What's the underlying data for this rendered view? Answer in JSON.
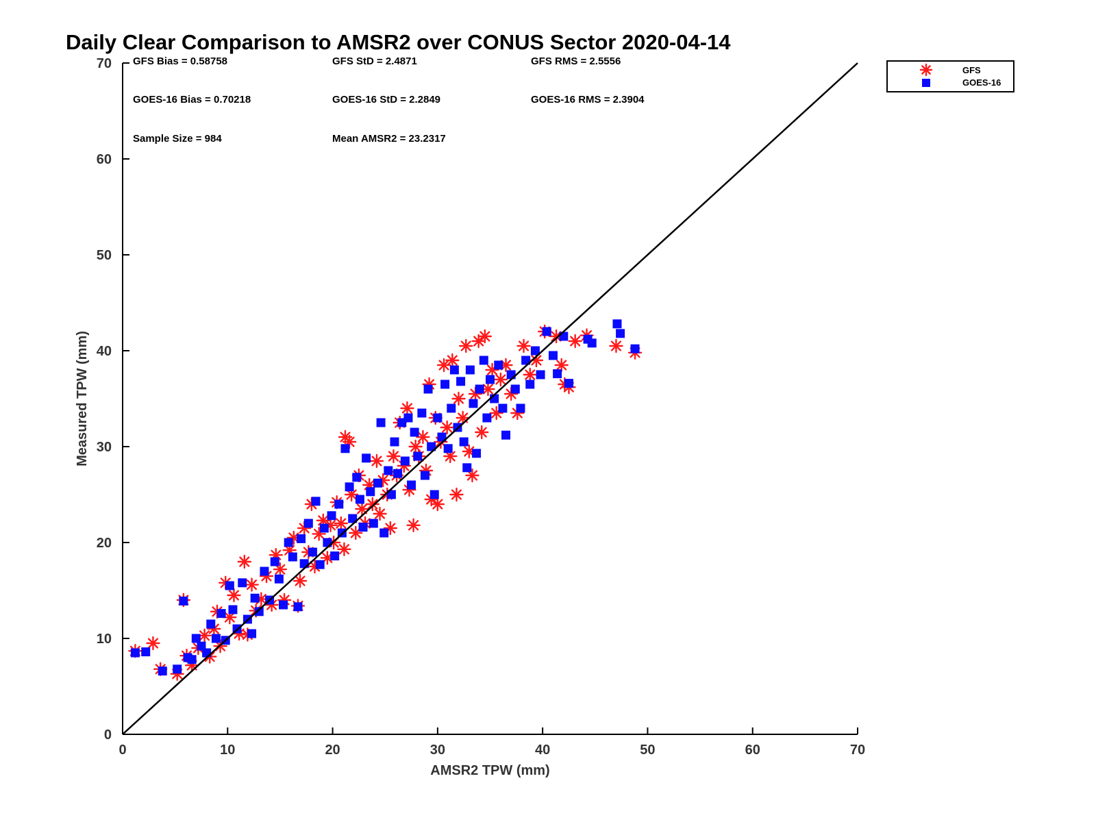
{
  "chart_data": {
    "type": "scatter",
    "title": "Daily Clear Comparison to AMSR2 over CONUS Sector 2020-04-14",
    "xlabel": "AMSR2 TPW (mm)",
    "ylabel": "Measured TPW (mm)",
    "xlim": [
      0,
      70
    ],
    "ylim": [
      0,
      70
    ],
    "xticks": [
      "0",
      "10",
      "20",
      "30",
      "40",
      "50",
      "60",
      "70"
    ],
    "yticks": [
      "0",
      "10",
      "20",
      "30",
      "40",
      "50",
      "60",
      "70"
    ],
    "grid": false,
    "legend_position": "outside-top-right",
    "reference_line": {
      "from": [
        0,
        0
      ],
      "to": [
        70,
        70
      ],
      "color": "#000000"
    },
    "stats": [
      "GFS Bias = 0.58758",
      "GFS StD = 2.4871",
      "GFS RMS = 2.5556",
      "GOES-16 Bias = 0.70218",
      "GOES-16 StD = 2.2849",
      "GOES-16 RMS = 2.3904",
      "Sample Size = 984",
      "Mean AMSR2 = 23.2317"
    ],
    "series": [
      {
        "name": "GFS",
        "marker": "asterisk",
        "color": "#ff1a1a",
        "points": [
          [
            1.2,
            8.7
          ],
          [
            2.9,
            9.5
          ],
          [
            3.6,
            6.8
          ],
          [
            5.8,
            14.0
          ],
          [
            5.2,
            6.3
          ],
          [
            6.1,
            8.2
          ],
          [
            6.6,
            7.2
          ],
          [
            7.2,
            9.0
          ],
          [
            7.8,
            10.3
          ],
          [
            8.3,
            8.1
          ],
          [
            8.7,
            11.0
          ],
          [
            9.0,
            12.8
          ],
          [
            9.3,
            9.2
          ],
          [
            9.8,
            15.8
          ],
          [
            10.2,
            12.2
          ],
          [
            10.6,
            14.5
          ],
          [
            11.1,
            10.5
          ],
          [
            11.6,
            18.0
          ],
          [
            11.9,
            10.4
          ],
          [
            12.3,
            15.6
          ],
          [
            12.7,
            12.9
          ],
          [
            13.2,
            14.1
          ],
          [
            13.7,
            16.5
          ],
          [
            14.2,
            13.5
          ],
          [
            14.6,
            18.7
          ],
          [
            15.0,
            17.2
          ],
          [
            15.4,
            14.0
          ],
          [
            15.9,
            19.2
          ],
          [
            16.3,
            20.5
          ],
          [
            16.7,
            13.4
          ],
          [
            16.9,
            16.0
          ],
          [
            17.3,
            21.5
          ],
          [
            17.7,
            19.0
          ],
          [
            18.0,
            24.0
          ],
          [
            18.3,
            17.5
          ],
          [
            18.7,
            20.9
          ],
          [
            19.1,
            22.3
          ],
          [
            19.5,
            18.4
          ],
          [
            19.8,
            21.8
          ],
          [
            20.1,
            20.0
          ],
          [
            20.4,
            24.2
          ],
          [
            20.8,
            22.0
          ],
          [
            21.1,
            19.3
          ],
          [
            21.2,
            31.0
          ],
          [
            21.6,
            30.5
          ],
          [
            21.8,
            25.0
          ],
          [
            22.2,
            21.0
          ],
          [
            22.5,
            27.0
          ],
          [
            22.8,
            23.5
          ],
          [
            23.1,
            22.0
          ],
          [
            23.5,
            26.0
          ],
          [
            23.8,
            24.0
          ],
          [
            24.2,
            28.5
          ],
          [
            24.5,
            23.0
          ],
          [
            24.8,
            26.5
          ],
          [
            25.2,
            25.0
          ],
          [
            25.5,
            21.5
          ],
          [
            25.8,
            29.0
          ],
          [
            26.1,
            27.0
          ],
          [
            26.4,
            32.5
          ],
          [
            26.8,
            28.0
          ],
          [
            27.1,
            34.0
          ],
          [
            27.3,
            25.5
          ],
          [
            27.7,
            21.8
          ],
          [
            27.9,
            30.0
          ],
          [
            28.2,
            29.0
          ],
          [
            28.6,
            31.0
          ],
          [
            28.9,
            27.5
          ],
          [
            29.2,
            36.5
          ],
          [
            29.4,
            24.5
          ],
          [
            29.8,
            33.0
          ],
          [
            30.0,
            24.0
          ],
          [
            30.3,
            30.5
          ],
          [
            30.6,
            38.5
          ],
          [
            30.9,
            32.0
          ],
          [
            31.2,
            29.0
          ],
          [
            31.4,
            39.0
          ],
          [
            31.8,
            25.0
          ],
          [
            32.0,
            35.0
          ],
          [
            32.4,
            33.0
          ],
          [
            32.7,
            40.5
          ],
          [
            33.0,
            29.5
          ],
          [
            33.3,
            27.0
          ],
          [
            33.6,
            35.5
          ],
          [
            33.9,
            41.0
          ],
          [
            34.2,
            31.5
          ],
          [
            34.5,
            41.5
          ],
          [
            34.8,
            36.0
          ],
          [
            35.2,
            38.0
          ],
          [
            35.6,
            33.5
          ],
          [
            36.0,
            37.0
          ],
          [
            36.5,
            38.5
          ],
          [
            37.0,
            35.5
          ],
          [
            37.6,
            33.5
          ],
          [
            38.2,
            40.5
          ],
          [
            38.8,
            37.5
          ],
          [
            39.4,
            39.0
          ],
          [
            40.2,
            42.0
          ],
          [
            41.3,
            41.5
          ],
          [
            41.8,
            38.5
          ],
          [
            42.1,
            36.5
          ],
          [
            42.5,
            36.2
          ],
          [
            43.1,
            41.0
          ],
          [
            44.2,
            41.6
          ],
          [
            47.0,
            40.5
          ],
          [
            48.8,
            39.8
          ]
        ]
      },
      {
        "name": "GOES-16",
        "marker": "square",
        "color": "#0a0aff",
        "points": [
          [
            1.2,
            8.5
          ],
          [
            2.2,
            8.6
          ],
          [
            3.8,
            6.6
          ],
          [
            5.8,
            13.9
          ],
          [
            5.2,
            6.8
          ],
          [
            6.2,
            8.0
          ],
          [
            6.6,
            7.8
          ],
          [
            7.0,
            10.0
          ],
          [
            7.5,
            9.2
          ],
          [
            8.0,
            8.5
          ],
          [
            8.4,
            11.5
          ],
          [
            8.9,
            10.0
          ],
          [
            9.4,
            12.6
          ],
          [
            9.8,
            9.8
          ],
          [
            10.2,
            15.5
          ],
          [
            10.5,
            13.0
          ],
          [
            10.9,
            11.0
          ],
          [
            11.4,
            15.8
          ],
          [
            11.9,
            12.0
          ],
          [
            12.3,
            10.5
          ],
          [
            12.6,
            14.2
          ],
          [
            13.0,
            12.8
          ],
          [
            13.5,
            17.0
          ],
          [
            14.0,
            14.0
          ],
          [
            14.5,
            18.0
          ],
          [
            14.9,
            16.2
          ],
          [
            15.3,
            13.5
          ],
          [
            15.8,
            20.0
          ],
          [
            16.2,
            18.5
          ],
          [
            16.7,
            13.3
          ],
          [
            17.0,
            20.4
          ],
          [
            17.3,
            17.8
          ],
          [
            17.7,
            22.0
          ],
          [
            18.1,
            19.0
          ],
          [
            18.4,
            24.3
          ],
          [
            18.8,
            17.7
          ],
          [
            19.2,
            21.5
          ],
          [
            19.5,
            20.0
          ],
          [
            19.9,
            22.8
          ],
          [
            20.2,
            18.6
          ],
          [
            20.6,
            24.0
          ],
          [
            20.9,
            21.0
          ],
          [
            21.2,
            29.8
          ],
          [
            21.6,
            25.8
          ],
          [
            21.9,
            22.5
          ],
          [
            22.3,
            26.8
          ],
          [
            22.6,
            24.5
          ],
          [
            22.9,
            21.6
          ],
          [
            23.2,
            28.8
          ],
          [
            23.6,
            25.3
          ],
          [
            23.9,
            22.0
          ],
          [
            24.3,
            26.2
          ],
          [
            24.6,
            32.5
          ],
          [
            24.9,
            21.0
          ],
          [
            25.3,
            27.5
          ],
          [
            25.6,
            25.0
          ],
          [
            25.9,
            30.5
          ],
          [
            26.2,
            27.2
          ],
          [
            26.6,
            32.5
          ],
          [
            26.9,
            28.5
          ],
          [
            27.2,
            33.0
          ],
          [
            27.5,
            26.0
          ],
          [
            27.8,
            31.5
          ],
          [
            28.1,
            29.0
          ],
          [
            28.5,
            33.5
          ],
          [
            28.8,
            27.0
          ],
          [
            29.1,
            36.0
          ],
          [
            29.4,
            30.0
          ],
          [
            29.7,
            25.0
          ],
          [
            30.0,
            33.0
          ],
          [
            30.4,
            31.0
          ],
          [
            30.7,
            36.5
          ],
          [
            31.0,
            29.8
          ],
          [
            31.3,
            34.0
          ],
          [
            31.6,
            38.0
          ],
          [
            31.9,
            32.0
          ],
          [
            32.2,
            36.8
          ],
          [
            32.5,
            30.5
          ],
          [
            32.8,
            27.8
          ],
          [
            33.1,
            38.0
          ],
          [
            33.4,
            34.5
          ],
          [
            33.7,
            29.3
          ],
          [
            34.0,
            36.0
          ],
          [
            34.4,
            39.0
          ],
          [
            34.7,
            33.0
          ],
          [
            35.0,
            37.0
          ],
          [
            35.4,
            35.0
          ],
          [
            35.8,
            38.5
          ],
          [
            36.2,
            34.0
          ],
          [
            36.5,
            31.2
          ],
          [
            37.0,
            37.5
          ],
          [
            37.4,
            36.0
          ],
          [
            37.9,
            34.0
          ],
          [
            38.4,
            39.0
          ],
          [
            38.8,
            36.5
          ],
          [
            39.3,
            40.0
          ],
          [
            39.8,
            37.5
          ],
          [
            40.4,
            42.0
          ],
          [
            41.0,
            39.5
          ],
          [
            41.4,
            37.6
          ],
          [
            42.0,
            41.5
          ],
          [
            42.5,
            36.6
          ],
          [
            44.3,
            41.2
          ],
          [
            44.7,
            40.8
          ],
          [
            47.1,
            42.8
          ],
          [
            47.4,
            41.8
          ],
          [
            48.8,
            40.2
          ]
        ]
      }
    ]
  }
}
